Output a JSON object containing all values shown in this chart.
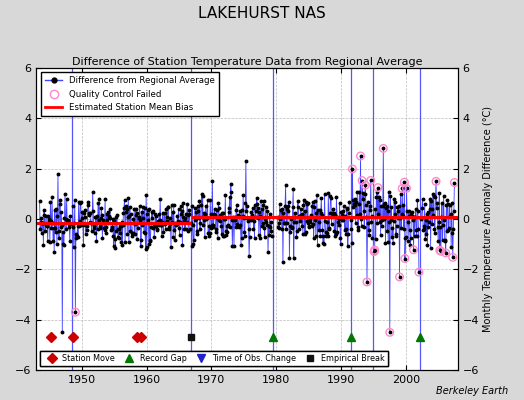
{
  "title": "LAKEHURST NAS",
  "subtitle": "Difference of Station Temperature Data from Regional Average",
  "ylabel": "Monthly Temperature Anomaly Difference (°C)",
  "ylim": [
    -6,
    6
  ],
  "xlim": [
    1943,
    2008
  ],
  "yticks": [
    -6,
    -4,
    -2,
    0,
    2,
    4,
    6
  ],
  "xticks": [
    1950,
    1960,
    1970,
    1980,
    1990,
    2000
  ],
  "background_color": "#d8d8d8",
  "plot_bg_color": "#ffffff",
  "station_moves": [
    1945.3,
    1948.7,
    1958.5,
    1959.2
  ],
  "record_gaps": [
    1979.5,
    1991.5,
    2002.2
  ],
  "obs_changes": [],
  "empirical_breaks": [
    1966.8
  ],
  "bias_segments": [
    {
      "x_start": 1943.0,
      "x_end": 1966.8,
      "bias": -0.18
    },
    {
      "x_start": 1966.8,
      "x_end": 1979.5,
      "bias": 0.06
    },
    {
      "x_start": 1979.5,
      "x_end": 2008.0,
      "bias": 0.06
    }
  ],
  "vertical_lines_x": [
    1948.5,
    1966.8,
    1979.5,
    1991.5,
    1995.0,
    2002.2
  ],
  "vertical_line_color": "#4444ff",
  "data_line_color": "#4444ff",
  "bias_line_color": "#ff0000",
  "qc_failed_color": "#ff88cc",
  "station_move_color": "#cc0000",
  "record_gap_color": "#007700",
  "obs_change_color": "#2222cc",
  "empirical_break_color": "#111111",
  "watermark": "Berkeley Earth",
  "title_fontsize": 11,
  "subtitle_fontsize": 8,
  "seed": 7
}
